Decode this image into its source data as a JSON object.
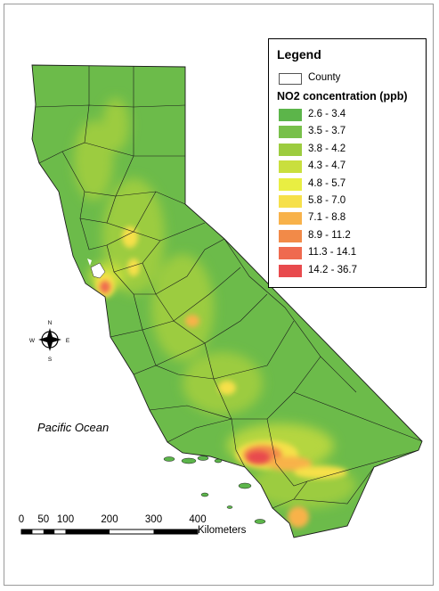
{
  "legend": {
    "title": "Legend",
    "county_label": "County",
    "concentration_title": "NO2 concentration (ppb)",
    "bins": [
      {
        "label": "2.6 - 3.4",
        "color": "#5cb54a"
      },
      {
        "label": "3.5 - 3.7",
        "color": "#78c04a"
      },
      {
        "label": "3.8 - 4.2",
        "color": "#9ccc3f"
      },
      {
        "label": "4.3 - 4.7",
        "color": "#c9df3e"
      },
      {
        "label": "4.8 - 5.7",
        "color": "#e9ee42"
      },
      {
        "label": "5.8 - 7.0",
        "color": "#f6e04a"
      },
      {
        "label": "7.1 - 8.8",
        "color": "#f8b24a"
      },
      {
        "label": "8.9 - 11.2",
        "color": "#f28a48"
      },
      {
        "label": "11.3 - 14.1",
        "color": "#ef6a4f"
      },
      {
        "label": "14.2 - 36.7",
        "color": "#e84a4d"
      }
    ]
  },
  "map": {
    "ocean_label": "Pacific Ocean",
    "compass": {
      "n": "N",
      "s": "S",
      "e": "E",
      "w": "W"
    }
  },
  "scale_bar": {
    "ticks": [
      "0",
      "50",
      "100",
      "200",
      "300",
      "400"
    ],
    "unit": "Kilometers"
  }
}
